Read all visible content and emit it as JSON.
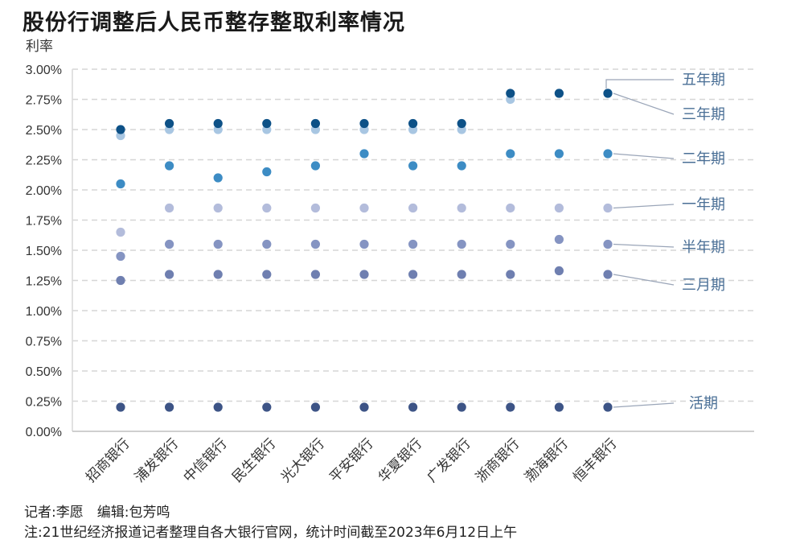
{
  "chart_data": {
    "type": "scatter",
    "title": "股份行调整后人民币整存整取利率情况",
    "ylabel": "利率",
    "xlabel": "",
    "ylim": [
      0,
      3.0
    ],
    "yticks": [
      "0.00%",
      "0.25%",
      "0.50%",
      "0.75%",
      "1.00%",
      "1.25%",
      "1.50%",
      "1.75%",
      "2.00%",
      "2.25%",
      "2.50%",
      "2.75%",
      "3.00%"
    ],
    "grid": true,
    "categories": [
      "招商银行",
      "浦发银行",
      "中信银行",
      "民生银行",
      "光大银行",
      "平安银行",
      "华夏银行",
      "广发银行",
      "浙商银行",
      "渤海银行",
      "恒丰银行"
    ],
    "series": [
      {
        "name": "活期",
        "color": "#3d5486",
        "values": [
          0.2,
          0.2,
          0.2,
          0.2,
          0.2,
          0.2,
          0.2,
          0.2,
          0.2,
          0.2,
          0.2
        ]
      },
      {
        "name": "三月期",
        "color": "#6f7fb0",
        "values": [
          1.25,
          1.3,
          1.3,
          1.3,
          1.3,
          1.3,
          1.3,
          1.3,
          1.3,
          1.33,
          1.3
        ]
      },
      {
        "name": "半年期",
        "color": "#8594c2",
        "values": [
          1.45,
          1.55,
          1.55,
          1.55,
          1.55,
          1.55,
          1.55,
          1.55,
          1.55,
          1.59,
          1.55
        ]
      },
      {
        "name": "一年期",
        "color": "#b3bcdb",
        "values": [
          1.65,
          1.85,
          1.85,
          1.85,
          1.85,
          1.85,
          1.85,
          1.85,
          1.85,
          1.85,
          1.85
        ]
      },
      {
        "name": "二年期",
        "color": "#3d8cc4",
        "values": [
          2.05,
          2.2,
          2.1,
          2.15,
          2.2,
          2.3,
          2.2,
          2.2,
          2.3,
          2.3,
          2.3
        ]
      },
      {
        "name": "三年期",
        "color": "#a8c6e2",
        "values": [
          2.45,
          2.5,
          2.5,
          2.5,
          2.5,
          2.5,
          2.5,
          2.5,
          2.75,
          2.8,
          2.8
        ]
      },
      {
        "name": "五年期",
        "color": "#0d5187",
        "values": [
          2.5,
          2.55,
          2.55,
          2.55,
          2.55,
          2.55,
          2.55,
          2.55,
          2.8,
          2.8,
          2.8
        ]
      }
    ],
    "label_order": [
      "五年期",
      "三年期",
      "二年期",
      "一年期",
      "半年期",
      "三月期",
      "活期"
    ]
  },
  "footer": {
    "author": "记者:李愿　编辑:包芳鸣",
    "note": "注:21世纪经济报道记者整理自各大银行官网，统计时间截至2023年6月12日上午"
  }
}
